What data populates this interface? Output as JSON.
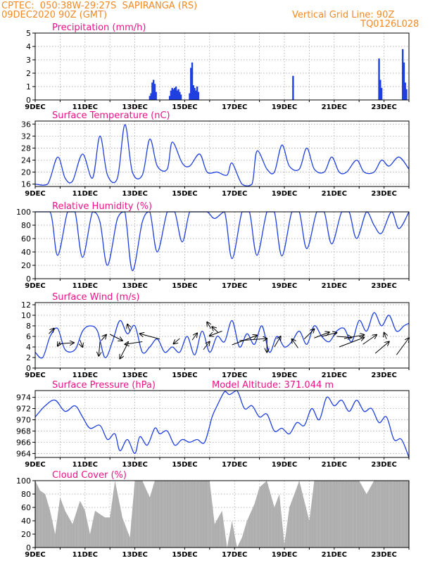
{
  "header": {
    "location": "CPTEC:  050:38W-29:27S  SAPIRANGA (RS)",
    "run": "09DEC2020 90Z (GMT)",
    "grid_line": "Vertical Grid Line: 90Z",
    "code": "TQ0126L028"
  },
  "colors": {
    "header": "#f08a24",
    "title": "#ee1188",
    "line": "#1f3fe0",
    "bar": "#1f3fe0",
    "cloud": "#a9a9a9",
    "arrow": "#000000"
  },
  "x_ticks": [
    "9DEC",
    "11DEC",
    "13DEC",
    "15DEC",
    "17DEC",
    "19DEC",
    "21DEC",
    "23DEC"
  ],
  "panels": [
    {
      "id": "precip",
      "title": "Precipitation (mm/h)",
      "type": "bar",
      "y_ticks": [
        "0",
        "1",
        "2",
        "3",
        "4",
        "5"
      ],
      "ylim": [
        0,
        5
      ],
      "x_day_start": 9,
      "x_day_end": 24,
      "bars": [
        [
          13.6,
          0.3
        ],
        [
          13.65,
          0.5
        ],
        [
          13.7,
          1.3
        ],
        [
          13.75,
          1.5
        ],
        [
          13.8,
          1.2
        ],
        [
          13.85,
          0.6
        ],
        [
          14.4,
          0.3
        ],
        [
          14.45,
          0.7
        ],
        [
          14.5,
          0.9
        ],
        [
          14.55,
          0.8
        ],
        [
          14.6,
          0.9
        ],
        [
          14.65,
          1.0
        ],
        [
          14.7,
          0.7
        ],
        [
          14.75,
          0.8
        ],
        [
          14.8,
          0.6
        ],
        [
          14.85,
          0.4
        ],
        [
          15.2,
          0.5
        ],
        [
          15.25,
          2.4
        ],
        [
          15.3,
          2.8
        ],
        [
          15.35,
          1.1
        ],
        [
          15.4,
          0.9
        ],
        [
          15.45,
          0.7
        ],
        [
          15.5,
          1.0
        ],
        [
          15.55,
          0.6
        ],
        [
          19.35,
          1.8
        ],
        [
          22.8,
          3.1
        ],
        [
          22.85,
          1.5
        ],
        [
          22.9,
          0.9
        ],
        [
          23.75,
          3.8
        ],
        [
          23.8,
          2.8
        ],
        [
          23.85,
          1.3
        ],
        [
          23.9,
          0.8
        ]
      ]
    },
    {
      "id": "temp",
      "title": "Surface Temperature (nC)",
      "type": "line",
      "y_ticks": [
        "16",
        "20",
        "24",
        "28",
        "32",
        "36"
      ],
      "ylim": [
        15.2,
        37
      ],
      "x": [
        9.0,
        9.5,
        9.9,
        10.2,
        10.5,
        10.9,
        11.3,
        11.6,
        11.9,
        12.3,
        12.6,
        12.9,
        13.3,
        13.6,
        13.9,
        14.3,
        14.5,
        14.9,
        15.2,
        15.6,
        15.9,
        16.3,
        16.7,
        16.9,
        17.3,
        17.7,
        17.9,
        18.3,
        18.6,
        18.9,
        19.2,
        19.6,
        19.9,
        20.2,
        20.6,
        20.9,
        21.2,
        21.5,
        21.9,
        22.2,
        22.6,
        22.9,
        23.2,
        23.6,
        24.0
      ],
      "y": [
        16,
        16,
        25,
        18,
        17,
        26,
        18,
        32,
        19,
        18,
        35.8,
        20,
        19,
        31,
        22,
        21,
        30,
        23,
        22,
        26,
        20,
        20,
        19,
        23,
        16,
        16,
        27,
        21,
        20,
        29,
        22,
        21,
        28,
        21,
        20,
        25,
        20,
        20,
        24,
        20,
        20,
        24,
        22,
        25,
        21
      ]
    },
    {
      "id": "rh",
      "title": "Relative Humidity (%)",
      "type": "line",
      "y_ticks": [
        "0",
        "20",
        "40",
        "60",
        "80",
        "100"
      ],
      "ylim": [
        0,
        100
      ],
      "x": [
        9.0,
        9.6,
        9.9,
        10.3,
        10.6,
        10.9,
        11.3,
        11.6,
        11.9,
        12.3,
        12.6,
        12.9,
        13.3,
        13.6,
        13.9,
        14.3,
        14.6,
        14.9,
        15.2,
        15.5,
        15.9,
        16.2,
        16.6,
        16.9,
        17.3,
        17.6,
        17.9,
        18.3,
        18.6,
        18.9,
        19.3,
        19.6,
        19.9,
        20.3,
        20.6,
        20.9,
        21.3,
        21.6,
        21.9,
        22.3,
        22.6,
        22.9,
        23.3,
        23.6,
        24.0
      ],
      "y": [
        100,
        100,
        35,
        100,
        100,
        32,
        100,
        85,
        20,
        90,
        100,
        12,
        85,
        100,
        40,
        100,
        100,
        55,
        100,
        100,
        100,
        90,
        100,
        30,
        100,
        100,
        35,
        100,
        100,
        34,
        100,
        100,
        45,
        100,
        100,
        52,
        100,
        100,
        60,
        100,
        80,
        68,
        100,
        75,
        100
      ]
    },
    {
      "id": "wind",
      "title": "Surface Wind (m/s)",
      "type": "line",
      "y_ticks": [
        "0",
        "2",
        "4",
        "6",
        "8",
        "10",
        "12"
      ],
      "ylim": [
        0,
        12.4
      ],
      "x": [
        9.0,
        9.3,
        9.6,
        9.9,
        10.2,
        10.6,
        10.9,
        11.2,
        11.5,
        11.8,
        12.1,
        12.4,
        12.7,
        13.0,
        13.3,
        13.6,
        13.9,
        14.2,
        14.5,
        14.8,
        15.1,
        15.4,
        15.7,
        16.0,
        16.3,
        16.6,
        16.9,
        17.2,
        17.5,
        17.8,
        18.1,
        18.4,
        18.7,
        19.0,
        19.3,
        19.6,
        19.9,
        20.2,
        20.5,
        20.8,
        21.1,
        21.4,
        21.7,
        22.0,
        22.3,
        22.6,
        22.9,
        23.2,
        23.5,
        23.8,
        24.0
      ],
      "y": [
        3,
        2,
        6,
        7.5,
        3.5,
        3.5,
        7,
        8,
        7,
        2,
        5,
        9,
        6.5,
        8,
        3,
        4,
        5.5,
        3,
        4,
        3,
        6,
        2.5,
        7,
        3,
        6,
        5,
        9,
        4,
        6.5,
        4.5,
        8,
        3,
        6,
        4,
        5,
        7,
        4.5,
        8,
        6,
        5,
        7,
        7.5,
        5,
        9,
        7,
        10.5,
        8,
        10,
        7,
        8,
        8.5
      ],
      "arrows": [
        [
          9.55,
          6.5,
          9.75,
          7.5
        ],
        [
          9.95,
          4.6,
          10.55,
          4.8
        ],
        [
          10.0,
          5.0,
          9.9,
          4.2
        ],
        [
          10.8,
          5.3,
          10.9,
          4.0
        ],
        [
          11.6,
          5.0,
          11.55,
          2.3
        ],
        [
          11.65,
          5.2,
          11.85,
          6.3
        ],
        [
          12.0,
          6.4,
          12.5,
          5.2
        ],
        [
          12.75,
          5.0,
          12.4,
          1.8
        ],
        [
          12.8,
          7.0,
          12.7,
          8.3
        ],
        [
          13.3,
          5.0,
          12.6,
          4.5
        ],
        [
          14.0,
          5.5,
          13.2,
          6.5
        ],
        [
          14.8,
          5.6,
          14.55,
          4.6
        ],
        [
          15.3,
          5.3,
          15.5,
          6.6
        ],
        [
          15.75,
          3.5,
          16.0,
          5.0
        ],
        [
          16.05,
          7.5,
          15.9,
          8.7
        ],
        [
          16.35,
          6.7,
          16.1,
          7.8
        ],
        [
          16.5,
          7.0,
          16.0,
          6.1
        ],
        [
          16.9,
          4.4,
          17.9,
          6.2
        ],
        [
          17.2,
          5.2,
          18.3,
          5.6
        ],
        [
          18.3,
          5.6,
          18.3,
          3.0
        ],
        [
          18.6,
          4.0,
          18.85,
          6.0
        ],
        [
          19.55,
          3.8,
          19.3,
          5.5
        ],
        [
          19.8,
          5.5,
          20.2,
          7.4
        ],
        [
          20.2,
          5.7,
          20.8,
          6.8
        ],
        [
          20.5,
          6.0,
          21.1,
          6.7
        ],
        [
          21.1,
          6.0,
          21.7,
          5.8
        ],
        [
          21.4,
          5.6,
          22.2,
          6.3
        ],
        [
          21.2,
          4.0,
          22.2,
          5.8
        ],
        [
          22.15,
          4.5,
          22.7,
          6.3
        ],
        [
          22.65,
          2.8,
          23.2,
          5.0
        ],
        [
          23.1,
          5.5,
          23.0,
          6.7
        ],
        [
          23.5,
          2.5,
          24.0,
          5.7
        ]
      ]
    },
    {
      "id": "press",
      "title": "Surface Pressure (hPa)",
      "extra": "Model Altitude: 371.044 m",
      "type": "line",
      "y_ticks": [
        "964",
        "966",
        "968",
        "970",
        "972",
        "974"
      ],
      "ylim": [
        963.3,
        975.2
      ],
      "x": [
        9.0,
        9.4,
        9.8,
        10.2,
        10.6,
        10.9,
        11.2,
        11.6,
        11.9,
        12.2,
        12.4,
        12.7,
        13.0,
        13.2,
        13.5,
        13.8,
        14.0,
        14.3,
        14.6,
        14.9,
        15.2,
        15.5,
        15.8,
        16.1,
        16.3,
        16.6,
        16.8,
        17.1,
        17.4,
        17.7,
        18.0,
        18.3,
        18.6,
        18.9,
        19.2,
        19.5,
        19.8,
        20.1,
        20.4,
        20.7,
        21.0,
        21.3,
        21.6,
        21.9,
        22.2,
        22.5,
        22.8,
        23.1,
        23.4,
        23.7,
        24.0
      ],
      "y": [
        970.5,
        972.5,
        973.5,
        971.5,
        972.5,
        970.5,
        968.5,
        969,
        966.5,
        967.5,
        964.5,
        966.5,
        964,
        967,
        965.5,
        968.5,
        967.5,
        968,
        965.5,
        966.5,
        966,
        966.5,
        966,
        970.5,
        972.5,
        975,
        974.5,
        975.2,
        972,
        972.5,
        970.5,
        971,
        968,
        968.5,
        967.5,
        969.5,
        969,
        972,
        970,
        974,
        972.5,
        973.5,
        971.5,
        973.5,
        971.5,
        972,
        969.5,
        970.5,
        966.5,
        966.5,
        963.3
      ]
    },
    {
      "id": "cloud",
      "title": "Cloud Cover (%)",
      "type": "area",
      "y_ticks": [
        "0",
        "20",
        "40",
        "60",
        "80",
        "100"
      ],
      "ylim": [
        0,
        100
      ],
      "x": [
        9.0,
        9.2,
        9.4,
        9.6,
        9.8,
        10.0,
        10.2,
        10.5,
        10.8,
        11.0,
        11.2,
        11.4,
        11.6,
        11.8,
        12.0,
        12.2,
        12.5,
        12.8,
        13.0,
        13.3,
        13.6,
        13.8,
        14.0,
        14.3,
        14.6,
        14.9,
        15.2,
        15.5,
        15.8,
        16.0,
        16.2,
        16.5,
        16.7,
        16.9,
        17.1,
        17.3,
        17.5,
        17.8,
        18.0,
        18.3,
        18.6,
        18.8,
        19.0,
        19.2,
        19.4,
        19.6,
        19.8,
        20.0,
        20.2,
        20.5,
        20.8,
        21.0,
        21.3,
        21.6,
        21.8,
        22.0,
        22.3,
        22.6,
        22.9,
        23.2,
        23.5,
        23.8,
        24.0
      ],
      "y": [
        100,
        85,
        80,
        55,
        20,
        75,
        55,
        35,
        70,
        55,
        20,
        55,
        50,
        45,
        45,
        100,
        45,
        15,
        100,
        100,
        75,
        100,
        100,
        100,
        100,
        100,
        100,
        100,
        100,
        100,
        35,
        55,
        0,
        40,
        0,
        15,
        40,
        65,
        90,
        100,
        60,
        80,
        5,
        60,
        80,
        100,
        70,
        40,
        100,
        100,
        100,
        100,
        100,
        100,
        100,
        100,
        80,
        100,
        100,
        100,
        100,
        100,
        100
      ]
    }
  ]
}
